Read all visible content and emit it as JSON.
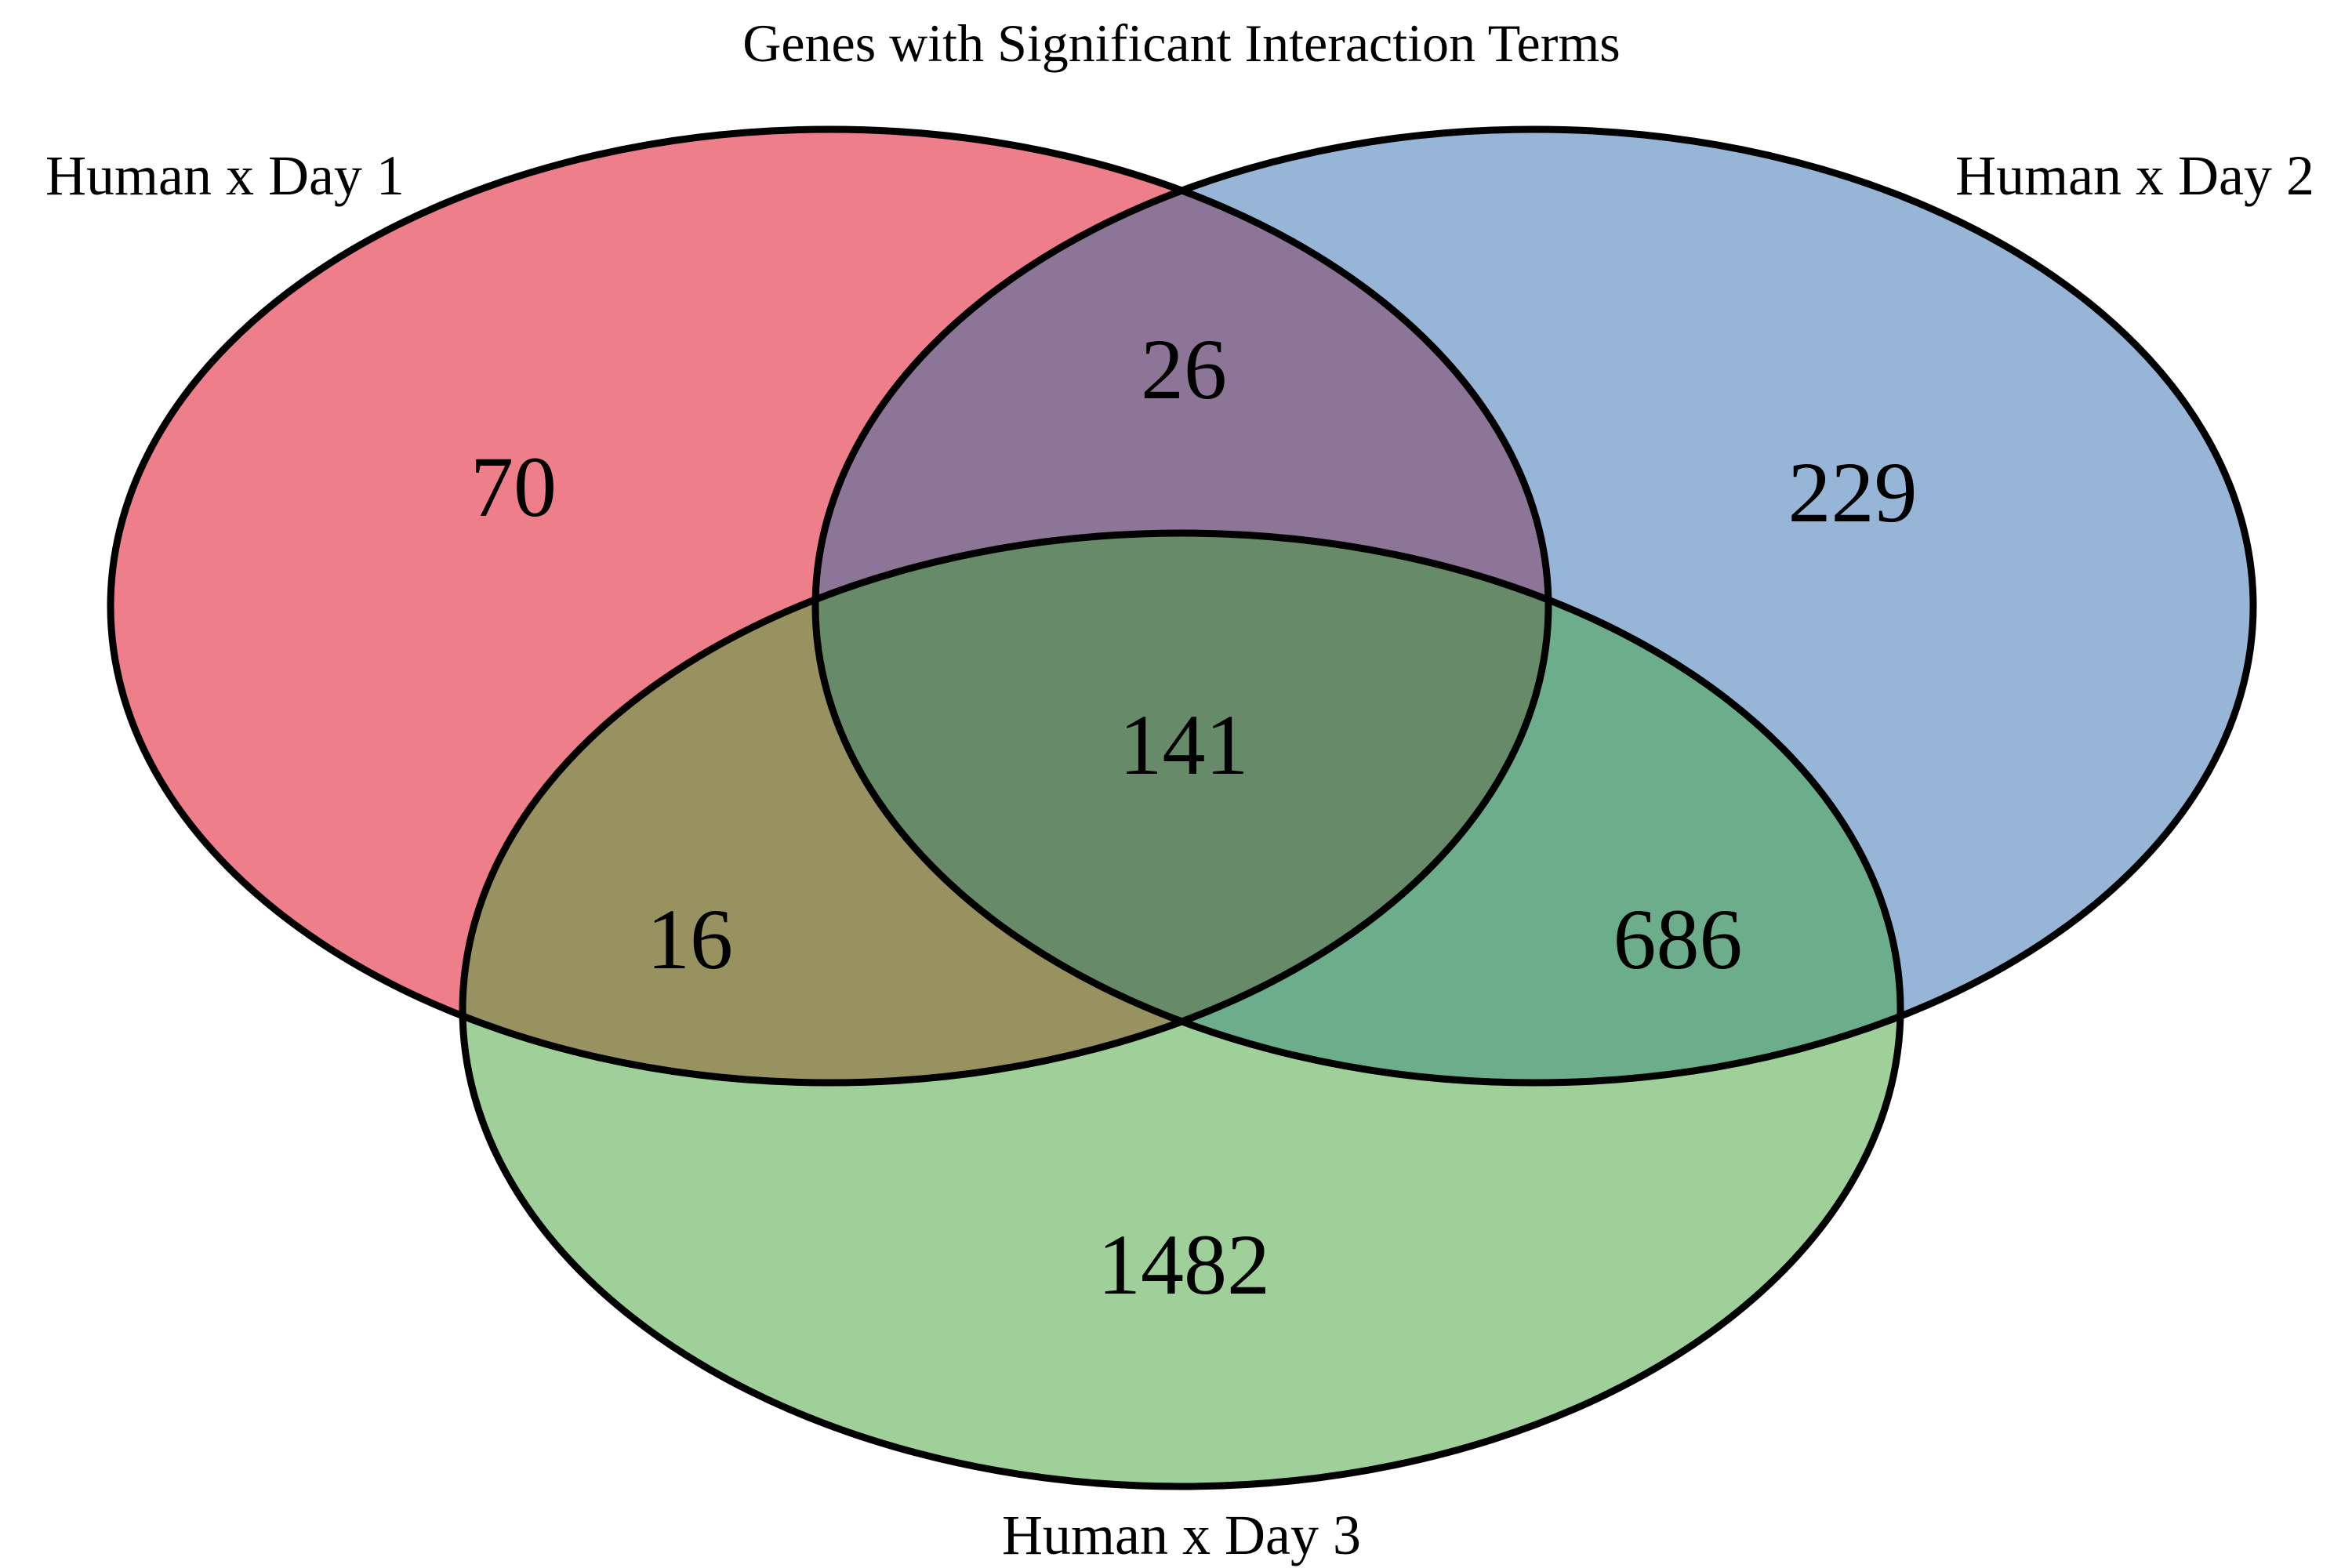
{
  "title": "Genes with Significant Interaction Terms",
  "sets": [
    {
      "id": "day1",
      "label": "Human x Day 1",
      "color": "#ee7f8a"
    },
    {
      "id": "day2",
      "label": "Human x Day 2",
      "color": "#97b5d6"
    },
    {
      "id": "day3",
      "label": "Human x Day 3",
      "color": "#a0d09a"
    }
  ],
  "regions": {
    "day1_only": "70",
    "day2_only": "229",
    "day3_only": "1482",
    "day1_day2": "26",
    "day1_day3": "16",
    "day2_day3": "686",
    "all_three": "141"
  },
  "region_colors": {
    "day1_day2": "#8c7596",
    "day1_day3": "#979260",
    "day2_day3": "#6cad8b",
    "all_three": "#678a69"
  }
}
